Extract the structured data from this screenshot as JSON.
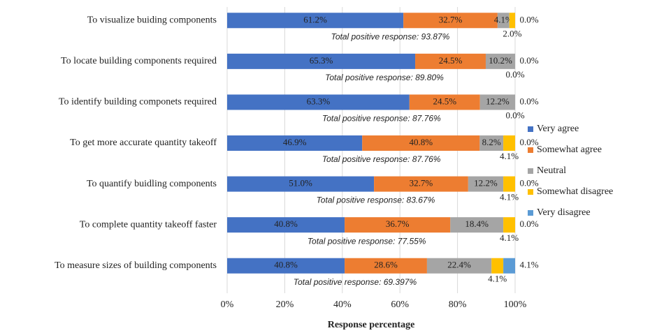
{
  "chart_data": {
    "type": "stacked-bar-horizontal",
    "categories": [
      "To visualize buiding components",
      "To locate building components required",
      "To identify building componets required",
      "To get more accurate quantity takeoff",
      "To quantify buidling components",
      "To complete quantity takeoff faster",
      "To measure sizes of building components"
    ],
    "series": [
      {
        "name": "Very agree",
        "color": "#4472c4",
        "values": [
          61.2,
          65.3,
          63.3,
          46.9,
          51.0,
          40.8,
          40.8
        ],
        "value_labels": [
          "61.2%",
          "65.3%",
          "63.3%",
          "46.9%",
          "51.0%",
          "40.8%",
          "40.8%"
        ]
      },
      {
        "name": "Somewhat agree",
        "color": "#ed7d31",
        "values": [
          32.7,
          24.5,
          24.5,
          40.8,
          32.7,
          36.7,
          28.6
        ],
        "value_labels": [
          "32.7%",
          "24.5%",
          "24.5%",
          "40.8%",
          "32.7%",
          "36.7%",
          "28.6%"
        ]
      },
      {
        "name": "Neutral",
        "color": "#a5a5a5",
        "values": [
          4.1,
          10.2,
          12.2,
          8.2,
          12.2,
          18.4,
          22.4
        ],
        "value_labels": [
          "4.1%",
          "10.2%",
          "12.2%",
          "8.2%",
          "12.2%",
          "18.4%",
          "22.4%"
        ]
      },
      {
        "name": "Somewhat disagree",
        "color": "#ffc000",
        "values": [
          2.0,
          0.0,
          0.0,
          4.1,
          4.1,
          4.1,
          4.1
        ],
        "value_labels": [
          "2.0%",
          "0.0%",
          "0.0%",
          "4.1%",
          "4.1%",
          "4.1%",
          "4.1%"
        ]
      },
      {
        "name": "Very disagree",
        "color": "#5b9bd5",
        "values": [
          0.0,
          0.0,
          0.0,
          0.0,
          0.0,
          0.0,
          4.1
        ],
        "value_labels": [
          "0.0%",
          "0.0%",
          "0.0%",
          "0.0%",
          "0.0%",
          "0.0%",
          "4.1%"
        ]
      }
    ],
    "annotations": [
      "Total positive response: 93.87%",
      "Total positive response: 89.80%",
      "Total positive response: 87.76%",
      "Total positive response: 87.76%",
      "Total positive response: 83.67%",
      "Total positive response: 77.55%",
      "Total positive response: 69.397%"
    ],
    "x_label": "Response percentage",
    "xlim": [
      0,
      100
    ],
    "xticks": [
      {
        "value": 0,
        "label": "0%"
      },
      {
        "value": 20,
        "label": "20%"
      },
      {
        "value": 40,
        "label": "40%"
      },
      {
        "value": 60,
        "label": "60%"
      },
      {
        "value": 80,
        "label": "80%"
      },
      {
        "value": 100,
        "label": "100%"
      }
    ],
    "grid": true,
    "legend": "right"
  }
}
